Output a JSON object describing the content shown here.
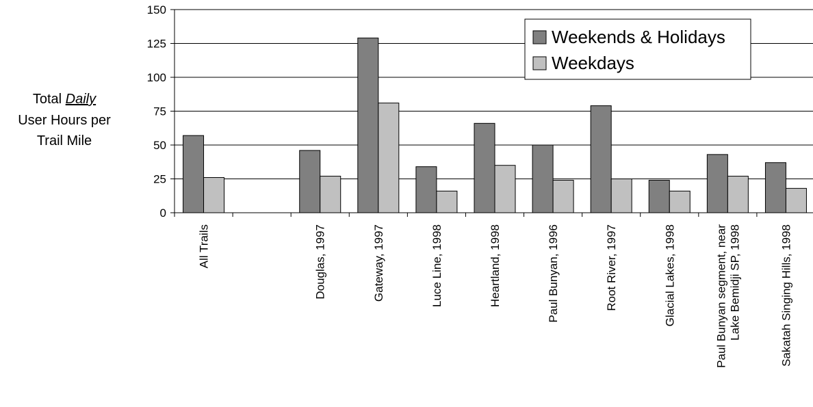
{
  "chart_data": {
    "type": "bar",
    "ylabel_lines": [
      {
        "pre": "Total ",
        "em": "Daily",
        "post": ""
      },
      {
        "pre": "User Hours per",
        "em": "",
        "post": ""
      },
      {
        "pre": "Trail Mile",
        "em": "",
        "post": ""
      }
    ],
    "categories": [
      [
        "All Trails"
      ],
      [
        ""
      ],
      [
        "Douglas, 1997"
      ],
      [
        "Gateway, 1997"
      ],
      [
        "Luce Line, 1998"
      ],
      [
        "Heartland, 1998"
      ],
      [
        "Paul Bunyan, 1996"
      ],
      [
        "Root River, 1997"
      ],
      [
        "Glacial Lakes, 1998"
      ],
      [
        "Paul Bunyan segment, near",
        "Lake Bemidji SP, 1998"
      ],
      [
        "Sakatah Singing Hills, 1998"
      ]
    ],
    "series": [
      {
        "name": "Weekends & Holidays",
        "color": "#808080",
        "values": [
          57,
          null,
          46,
          129,
          34,
          66,
          50,
          79,
          24,
          43,
          37
        ]
      },
      {
        "name": "Weekdays",
        "color": "#c0c0c0",
        "values": [
          26,
          null,
          27,
          81,
          16,
          35,
          24,
          25,
          16,
          27,
          18
        ]
      }
    ],
    "ylim": [
      0,
      150
    ],
    "yticks": [
      0,
      25,
      50,
      75,
      100,
      125,
      150
    ],
    "grid": true,
    "legend_position": "top-right"
  }
}
